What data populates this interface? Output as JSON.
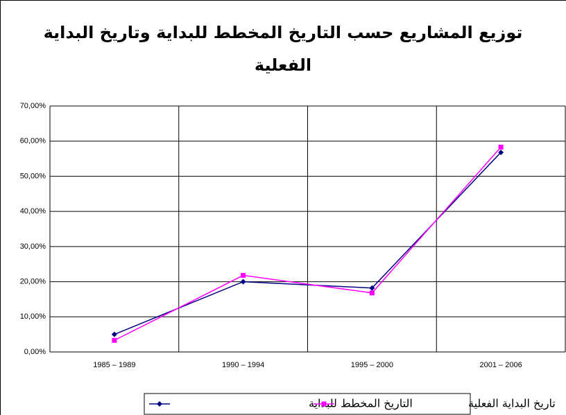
{
  "chart_data": {
    "type": "line",
    "title": [
      "توزيع المشاريع حسب التاريخ المخطط للبداية وتاريخ البداية",
      "الفعلية"
    ],
    "categories": [
      "1985 – 1989",
      "1990 – 1994",
      "1995 – 2000",
      "2001 – 2006"
    ],
    "series": [
      {
        "name": "التاريخ المخطط للبداية",
        "color": "#000080",
        "marker": "diamond",
        "values": [
          5,
          20,
          18.2,
          56.8
        ]
      },
      {
        "name": "تاريخ البداية الفعلية",
        "color": "#ff00ff",
        "marker": "square",
        "values": [
          3.3,
          21.8,
          16.8,
          58.3
        ]
      }
    ],
    "ylim": [
      0,
      70
    ],
    "yticks": [
      {
        "value": 0,
        "label": "0,00%"
      },
      {
        "value": 10,
        "label": "10,00%"
      },
      {
        "value": 20,
        "label": "20,00%"
      },
      {
        "value": 30,
        "label": "30,00%"
      },
      {
        "value": 40,
        "label": "40,00%"
      },
      {
        "value": 50,
        "label": "50,00%"
      },
      {
        "value": 60,
        "label": "60,00%"
      },
      {
        "value": 70,
        "label": "70,00%"
      }
    ],
    "grid": true
  }
}
